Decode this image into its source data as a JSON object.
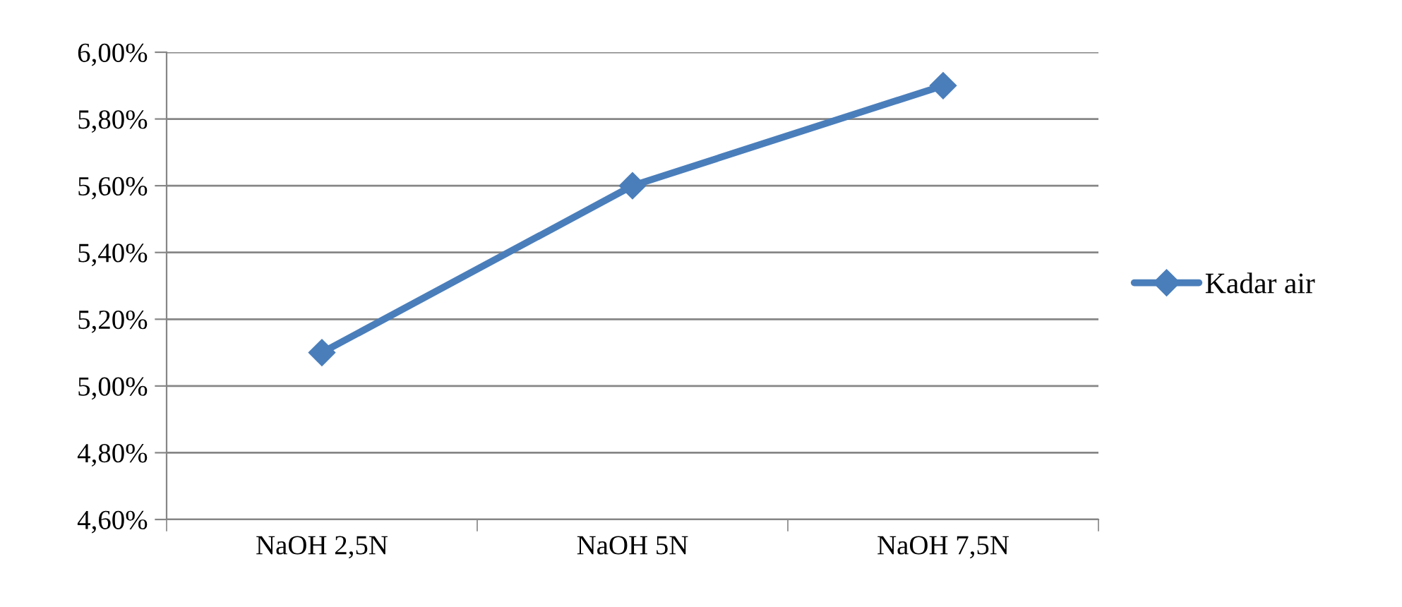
{
  "chart_data": {
    "type": "line",
    "categories": [
      "NaOH 2,5N",
      "NaOH 5N",
      "NaOH 7,5N"
    ],
    "series": [
      {
        "name": "Kadar air",
        "color": "#4a7ebb",
        "values": [
          5.1,
          5.6,
          5.9
        ]
      }
    ],
    "ylim": [
      4.6,
      6.0
    ],
    "yticks": [
      {
        "value": 4.6,
        "label": "4,60%"
      },
      {
        "value": 4.8,
        "label": "4,80%"
      },
      {
        "value": 5.0,
        "label": "5,00%"
      },
      {
        "value": 5.2,
        "label": "5,20%"
      },
      {
        "value": 5.4,
        "label": "5,40%"
      },
      {
        "value": 5.6,
        "label": "5,60%"
      },
      {
        "value": 5.8,
        "label": "5,80%"
      },
      {
        "value": 6.0,
        "label": "6,00%"
      }
    ],
    "grid": "y",
    "legend": "right",
    "marker": "diamond",
    "line_style": "solid"
  }
}
